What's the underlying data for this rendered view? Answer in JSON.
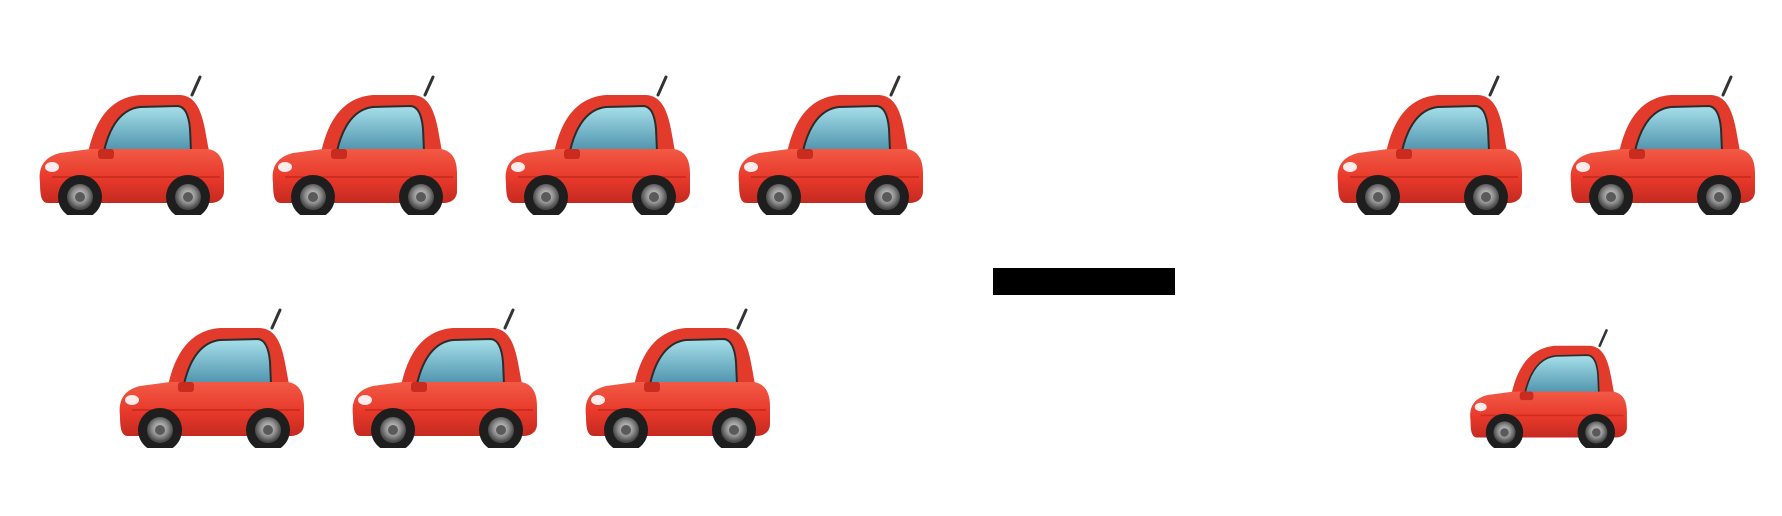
{
  "expression": {
    "operator": "minus",
    "left_group": {
      "icon": "red-car-icon",
      "count": 7
    },
    "right_group": {
      "icon": "red-car-icon",
      "count": 3
    }
  },
  "colors": {
    "car_body": "#e8392b",
    "car_window": "#7cc6d6",
    "operator": "#000000"
  }
}
